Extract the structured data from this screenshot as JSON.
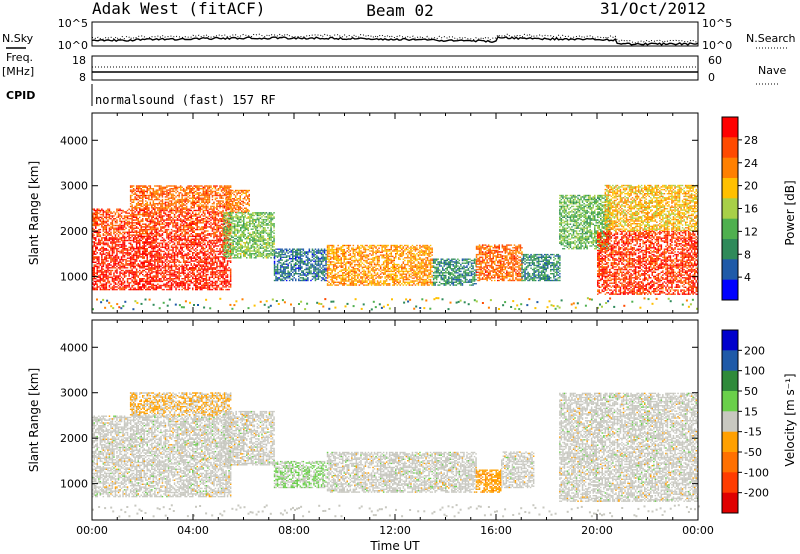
{
  "header": {
    "station": "Adak West (fitACF)",
    "beam": "Beam 02",
    "date": "31/Oct/2012"
  },
  "top_panels": {
    "nsky_label": "N.Sky",
    "nsearch_label": "N.Search",
    "log_top": "10^5",
    "log_bottom": "10^0",
    "freq_label": "Freq.",
    "freq_unit": "[MHz]",
    "freq_top": "18",
    "freq_bottom": "8",
    "nave_label": "Nave",
    "nave_top": "60",
    "nave_bottom": "0",
    "cpid_label": "CPID",
    "cpid_text": "normalsound (fast) 157 RF"
  },
  "colors": {
    "power_scale": [
      "#0000ff",
      "#1f5aa8",
      "#2f8a5a",
      "#4fb04f",
      "#a8d048",
      "#ffc000",
      "#ff8000",
      "#ff4a00",
      "#ff0000"
    ],
    "velocity_scale": [
      "#0000cc",
      "#1f5aa8",
      "#2f8a3a",
      "#6ad04a",
      "#c8c8c0",
      "#ffa000",
      "#ff7000",
      "#ff3c00",
      "#e00000"
    ]
  },
  "chart_data": [
    {
      "type": "heatmap",
      "name": "power",
      "xlabel": "",
      "ylabel": "Slant Range [km]",
      "yticks": [
        "1000",
        "2000",
        "3000",
        "4000"
      ],
      "ylim": [
        200,
        4600
      ],
      "xlim": [
        "00:00",
        "24:00"
      ],
      "colorbar_label": "Power [dB]",
      "colorbar_ticks": [
        "4",
        "8",
        "12",
        "16",
        "20",
        "24",
        "28"
      ],
      "clim": [
        0,
        32
      ],
      "regions": [
        {
          "t0": 0,
          "t1": 5.5,
          "r0": 700,
          "r1": 1900,
          "value": 29
        },
        {
          "t0": 0,
          "t1": 5.5,
          "r0": 1900,
          "r1": 2500,
          "value": 27
        },
        {
          "t0": 1.5,
          "t1": 5.5,
          "r0": 2500,
          "r1": 3000,
          "value": 25
        },
        {
          "t0": 5.3,
          "t1": 6.2,
          "r0": 2400,
          "r1": 2900,
          "value": 24
        },
        {
          "t0": 5.2,
          "t1": 7.2,
          "r0": 1400,
          "r1": 2400,
          "value": 14
        },
        {
          "t0": 7.2,
          "t1": 9.3,
          "r0": 900,
          "r1": 1600,
          "value": 7
        },
        {
          "t0": 9.3,
          "t1": 13.5,
          "r0": 800,
          "r1": 1700,
          "value": 22
        },
        {
          "t0": 13.5,
          "t1": 15.2,
          "r0": 800,
          "r1": 1400,
          "value": 9
        },
        {
          "t0": 15.2,
          "t1": 17.0,
          "r0": 900,
          "r1": 1700,
          "value": 25
        },
        {
          "t0": 17.0,
          "t1": 18.5,
          "r0": 900,
          "r1": 1500,
          "value": 9
        },
        {
          "t0": 18.5,
          "t1": 20.5,
          "r0": 1600,
          "r1": 2800,
          "value": 13
        },
        {
          "t0": 20.0,
          "t1": 24.0,
          "r0": 600,
          "r1": 2000,
          "value": 28
        },
        {
          "t0": 20.3,
          "t1": 24.0,
          "r0": 2000,
          "r1": 3000,
          "value": 20
        }
      ]
    },
    {
      "type": "heatmap",
      "name": "velocity",
      "xlabel": "Time UT",
      "ylabel": "Slant Range [km]",
      "yticks": [
        "1000",
        "2000",
        "3000",
        "4000"
      ],
      "ylim": [
        200,
        4600
      ],
      "xticks": [
        "00:00",
        "04:00",
        "08:00",
        "12:00",
        "16:00",
        "20:00",
        "00:00"
      ],
      "xlim": [
        "00:00",
        "24:00"
      ],
      "colorbar_label": "Velocity [m s⁻¹]",
      "colorbar_ticks": [
        "200",
        "100",
        "50",
        "15",
        "-15",
        "-50",
        "-100",
        "-200"
      ],
      "clim": [
        -250,
        250
      ],
      "regions": [
        {
          "t0": 0,
          "t1": 5.5,
          "r0": 700,
          "r1": 2500,
          "value": 0
        },
        {
          "t0": 1.5,
          "t1": 5.5,
          "r0": 2500,
          "r1": 3000,
          "value": -30
        },
        {
          "t0": 5.2,
          "t1": 7.2,
          "r0": 1400,
          "r1": 2600,
          "value": 0
        },
        {
          "t0": 7.2,
          "t1": 9.3,
          "r0": 900,
          "r1": 1500,
          "value": 30
        },
        {
          "t0": 9.3,
          "t1": 15.2,
          "r0": 800,
          "r1": 1700,
          "value": 0
        },
        {
          "t0": 15.2,
          "t1": 16.2,
          "r0": 800,
          "r1": 1300,
          "value": -60
        },
        {
          "t0": 16.2,
          "t1": 17.5,
          "r0": 900,
          "r1": 1700,
          "value": 0
        },
        {
          "t0": 18.5,
          "t1": 24.0,
          "r0": 600,
          "r1": 3000,
          "value": 0
        }
      ]
    }
  ]
}
